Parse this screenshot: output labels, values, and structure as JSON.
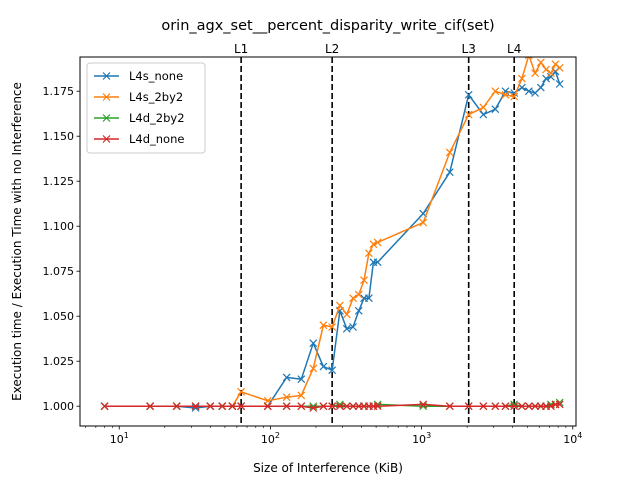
{
  "chart_data": {
    "type": "line",
    "title": "orin_agx_set__percent_disparity_write_cif(set)",
    "xlabel": "Size of Interference (KiB)",
    "ylabel": "Execution time / Execution Time with no Interference",
    "xscale": "log",
    "xlim": [
      5.5,
      10500
    ],
    "ylim": [
      0.989,
      1.194
    ],
    "x_ticks": [
      {
        "value": 10,
        "base": "10",
        "exp": "1"
      },
      {
        "value": 100,
        "base": "10",
        "exp": "2"
      },
      {
        "value": 1000,
        "base": "10",
        "exp": "3"
      },
      {
        "value": 10000,
        "base": "10",
        "exp": "4"
      }
    ],
    "y_ticks": [
      {
        "value": 1.0,
        "label": "1.000"
      },
      {
        "value": 1.025,
        "label": "1.025"
      },
      {
        "value": 1.05,
        "label": "1.050"
      },
      {
        "value": 1.075,
        "label": "1.075"
      },
      {
        "value": 1.1,
        "label": "1.100"
      },
      {
        "value": 1.125,
        "label": "1.125"
      },
      {
        "value": 1.15,
        "label": "1.150"
      },
      {
        "value": 1.175,
        "label": "1.175"
      }
    ],
    "vlines": [
      {
        "x": 64,
        "label": "L1"
      },
      {
        "x": 256,
        "label": "L2"
      },
      {
        "x": 2048,
        "label": "L3"
      },
      {
        "x": 4096,
        "label": "L4"
      }
    ],
    "legend_position": "upper-left",
    "grid": false,
    "series": [
      {
        "name": "L4s_none",
        "color": "#1f77b4",
        "points": [
          [
            8,
            1.0
          ],
          [
            16,
            1.0
          ],
          [
            24,
            1.0
          ],
          [
            32,
            0.999
          ],
          [
            40,
            1.0
          ],
          [
            48,
            1.0
          ],
          [
            56,
            1.0
          ],
          [
            64,
            1.0
          ],
          [
            96,
            1.0
          ],
          [
            128,
            1.016
          ],
          [
            160,
            1.015
          ],
          [
            192,
            1.035
          ],
          [
            224,
            1.022
          ],
          [
            256,
            1.02
          ],
          [
            288,
            1.053
          ],
          [
            320,
            1.043
          ],
          [
            352,
            1.044
          ],
          [
            384,
            1.053
          ],
          [
            416,
            1.06
          ],
          [
            448,
            1.06
          ],
          [
            480,
            1.08
          ],
          [
            512,
            1.08
          ],
          [
            1024,
            1.107
          ],
          [
            1536,
            1.13
          ],
          [
            2048,
            1.173
          ],
          [
            2560,
            1.162
          ],
          [
            3072,
            1.165
          ],
          [
            3584,
            1.175
          ],
          [
            4096,
            1.174
          ],
          [
            4608,
            1.177
          ],
          [
            5120,
            1.175
          ],
          [
            5632,
            1.174
          ],
          [
            6144,
            1.177
          ],
          [
            6656,
            1.182
          ],
          [
            7168,
            1.183
          ],
          [
            7680,
            1.186
          ],
          [
            8192,
            1.179
          ]
        ]
      },
      {
        "name": "L4s_2by2",
        "color": "#ff7f0e",
        "points": [
          [
            8,
            1.0
          ],
          [
            16,
            1.0
          ],
          [
            24,
            1.0
          ],
          [
            32,
            1.0
          ],
          [
            40,
            1.0
          ],
          [
            48,
            1.0
          ],
          [
            56,
            1.0
          ],
          [
            64,
            1.008
          ],
          [
            96,
            1.003
          ],
          [
            128,
            1.005
          ],
          [
            160,
            1.006
          ],
          [
            192,
            1.021
          ],
          [
            224,
            1.045
          ],
          [
            256,
            1.044
          ],
          [
            288,
            1.056
          ],
          [
            320,
            1.051
          ],
          [
            352,
            1.06
          ],
          [
            384,
            1.062
          ],
          [
            416,
            1.07
          ],
          [
            448,
            1.085
          ],
          [
            480,
            1.09
          ],
          [
            512,
            1.091
          ],
          [
            1024,
            1.102
          ],
          [
            1536,
            1.141
          ],
          [
            2048,
            1.162
          ],
          [
            2560,
            1.166
          ],
          [
            3072,
            1.175
          ],
          [
            3584,
            1.173
          ],
          [
            4096,
            1.172
          ],
          [
            4608,
            1.182
          ],
          [
            5120,
            1.195
          ],
          [
            5632,
            1.185
          ],
          [
            6144,
            1.191
          ],
          [
            6656,
            1.187
          ],
          [
            7168,
            1.185
          ],
          [
            7680,
            1.19
          ],
          [
            8192,
            1.188
          ]
        ]
      },
      {
        "name": "L4d_2by2",
        "color": "#2ca02c",
        "points": [
          [
            8,
            1.0
          ],
          [
            16,
            1.0
          ],
          [
            24,
            1.0
          ],
          [
            32,
            1.0
          ],
          [
            40,
            1.0
          ],
          [
            48,
            1.0
          ],
          [
            56,
            1.0
          ],
          [
            64,
            1.0
          ],
          [
            96,
            1.0
          ],
          [
            128,
            1.0
          ],
          [
            160,
            1.0
          ],
          [
            192,
            1.0
          ],
          [
            224,
            1.0
          ],
          [
            256,
            1.0
          ],
          [
            288,
            1.001
          ],
          [
            320,
            1.0
          ],
          [
            352,
            1.0
          ],
          [
            384,
            1.0
          ],
          [
            416,
            1.0
          ],
          [
            448,
            1.0
          ],
          [
            480,
            1.0
          ],
          [
            512,
            1.001
          ],
          [
            1024,
            1.0
          ],
          [
            1536,
            1.0
          ],
          [
            2048,
            1.0
          ],
          [
            2560,
            1.0
          ],
          [
            3072,
            1.0
          ],
          [
            3584,
            1.0
          ],
          [
            4096,
            1.001
          ],
          [
            4608,
            1.0
          ],
          [
            5120,
            1.0
          ],
          [
            5632,
            1.0
          ],
          [
            6144,
            1.0
          ],
          [
            6656,
            1.0
          ],
          [
            7168,
            1.001
          ],
          [
            7680,
            1.001
          ],
          [
            8192,
            1.002
          ]
        ]
      },
      {
        "name": "L4d_none",
        "color": "#d62728",
        "points": [
          [
            8,
            1.0
          ],
          [
            16,
            1.0
          ],
          [
            24,
            1.0
          ],
          [
            32,
            1.0
          ],
          [
            40,
            1.0
          ],
          [
            48,
            1.0
          ],
          [
            56,
            1.0
          ],
          [
            64,
            1.0
          ],
          [
            96,
            1.0
          ],
          [
            128,
            1.0
          ],
          [
            160,
            1.0
          ],
          [
            192,
            0.999
          ],
          [
            224,
            1.0
          ],
          [
            256,
            1.0
          ],
          [
            288,
            1.0
          ],
          [
            320,
            1.0
          ],
          [
            352,
            1.0
          ],
          [
            384,
            1.0
          ],
          [
            416,
            1.0
          ],
          [
            448,
            1.0
          ],
          [
            480,
            1.0
          ],
          [
            512,
            1.0
          ],
          [
            1024,
            1.001
          ],
          [
            1536,
            1.0
          ],
          [
            2048,
            1.0
          ],
          [
            2560,
            1.0
          ],
          [
            3072,
            1.0
          ],
          [
            3584,
            1.0
          ],
          [
            4096,
            1.0
          ],
          [
            4608,
            1.0
          ],
          [
            5120,
            1.0
          ],
          [
            5632,
            1.0
          ],
          [
            6144,
            1.0
          ],
          [
            6656,
            1.0
          ],
          [
            7168,
            1.0
          ],
          [
            7680,
            1.001
          ],
          [
            8192,
            1.001
          ]
        ]
      }
    ]
  }
}
